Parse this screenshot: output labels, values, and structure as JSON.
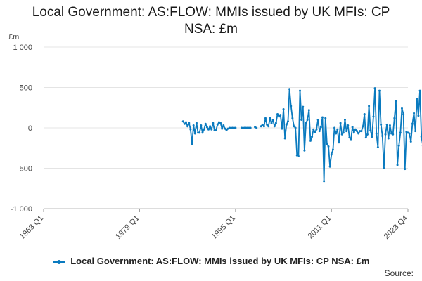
{
  "chart_data": {
    "type": "line",
    "title_line1": "Local Government: AS:FLOW: MMIs issued by UK MFIs: CP",
    "title_line2": "NSA: £m",
    "ylabel": "£m",
    "ylim": [
      -1000,
      1000
    ],
    "yticks": [
      {
        "value": 1000,
        "label": "1 000"
      },
      {
        "value": 500,
        "label": "500"
      },
      {
        "value": 0,
        "label": "0"
      },
      {
        "value": -500,
        "label": "-500"
      },
      {
        "value": -1000,
        "label": "-1 000"
      }
    ],
    "xlim": [
      1963.0,
      2023.75
    ],
    "xticks": [
      {
        "value": 1963.0,
        "label": "1963 Q1"
      },
      {
        "value": 1979.0,
        "label": "1979 Q1"
      },
      {
        "value": 1995.0,
        "label": "1995 Q1"
      },
      {
        "value": 2011.0,
        "label": "2011 Q1"
      },
      {
        "value": 2023.75,
        "label": "2023 Q4"
      }
    ],
    "grid": true,
    "legend_position": "bottom",
    "series": [
      {
        "name": "Local Government: AS:FLOW: MMIs issued by UK MFIs: CP NSA: £m",
        "color": "#0a7abf",
        "segments": [
          [
            [
              1986.25,
              80
            ],
            [
              1986.5,
              50
            ],
            [
              1986.75,
              70
            ],
            [
              1987.0,
              20
            ],
            [
              1987.25,
              60
            ],
            [
              1987.5,
              -20
            ],
            [
              1987.75,
              -200
            ],
            [
              1988.0,
              30
            ],
            [
              1988.25,
              -70
            ],
            [
              1988.5,
              60
            ],
            [
              1988.75,
              -60
            ],
            [
              1989.0,
              -60
            ],
            [
              1989.25,
              30
            ],
            [
              1989.5,
              -60
            ],
            [
              1989.75,
              -20
            ],
            [
              1990.0,
              50
            ],
            [
              1990.25,
              10
            ],
            [
              1990.5,
              -20
            ],
            [
              1990.75,
              20
            ],
            [
              1991.0,
              -20
            ],
            [
              1991.25,
              60
            ],
            [
              1991.5,
              -30
            ],
            [
              1991.75,
              -30
            ],
            [
              1992.0,
              40
            ],
            [
              1992.25,
              70
            ],
            [
              1992.5,
              60
            ],
            [
              1992.75,
              -10
            ],
            [
              1993.0,
              30
            ],
            [
              1993.25,
              -10
            ],
            [
              1993.5,
              -30
            ],
            [
              1993.75,
              -10
            ],
            [
              1994.0,
              0
            ],
            [
              1994.25,
              0
            ],
            [
              1994.5,
              0
            ],
            [
              1994.75,
              0
            ],
            [
              1995.0,
              0
            ]
          ],
          [
            [
              1996.0,
              0
            ],
            [
              1996.25,
              0
            ],
            [
              1996.5,
              0
            ],
            [
              1996.75,
              0
            ],
            [
              1997.0,
              0
            ],
            [
              1997.25,
              0
            ],
            [
              1997.5,
              0
            ]
          ],
          [
            [
              1998.25,
              10
            ],
            [
              1998.5,
              0
            ]
          ],
          [
            [
              1999.25,
              20
            ],
            [
              1999.5,
              40
            ],
            [
              1999.75,
              20
            ],
            [
              2000.0,
              120
            ],
            [
              2000.25,
              40
            ],
            [
              2000.5,
              20
            ],
            [
              2000.75,
              120
            ],
            [
              2001.0,
              60
            ],
            [
              2001.25,
              100
            ],
            [
              2001.5,
              20
            ],
            [
              2001.75,
              60
            ],
            [
              2002.0,
              170
            ],
            [
              2002.25,
              140
            ],
            [
              2002.5,
              160
            ],
            [
              2002.75,
              -10
            ],
            [
              2003.0,
              230
            ],
            [
              2003.25,
              -130
            ],
            [
              2003.5,
              40
            ],
            [
              2003.75,
              80
            ],
            [
              2004.0,
              480
            ],
            [
              2004.25,
              270
            ],
            [
              2004.5,
              120
            ],
            [
              2004.75,
              20
            ],
            [
              2005.0,
              0
            ],
            [
              2005.25,
              -340
            ],
            [
              2005.5,
              -350
            ],
            [
              2005.75,
              460
            ],
            [
              2006.0,
              100
            ],
            [
              2006.25,
              260
            ],
            [
              2006.5,
              -280
            ],
            [
              2006.75,
              60
            ],
            [
              2007.0,
              100
            ],
            [
              2007.25,
              220
            ],
            [
              2007.5,
              -160
            ],
            [
              2007.75,
              -110
            ],
            [
              2008.0,
              -20
            ],
            [
              2008.25,
              -50
            ],
            [
              2008.5,
              -20
            ],
            [
              2008.75,
              100
            ],
            [
              2009.0,
              -40
            ],
            [
              2009.25,
              10
            ],
            [
              2009.5,
              130
            ],
            [
              2009.75,
              -660
            ],
            [
              2010.0,
              120
            ],
            [
              2010.25,
              -200
            ],
            [
              2010.5,
              -230
            ],
            [
              2010.75,
              -480
            ],
            [
              2011.0,
              -330
            ],
            [
              2011.25,
              -270
            ],
            [
              2011.5,
              0
            ],
            [
              2011.75,
              -70
            ],
            [
              2012.0,
              -20
            ],
            [
              2012.25,
              -180
            ],
            [
              2012.5,
              60
            ],
            [
              2012.75,
              -80
            ],
            [
              2013.0,
              -60
            ],
            [
              2013.25,
              100
            ],
            [
              2013.5,
              -40
            ],
            [
              2013.75,
              30
            ],
            [
              2014.0,
              -120
            ],
            [
              2014.25,
              -140
            ],
            [
              2014.5,
              10
            ],
            [
              2014.75,
              -60
            ],
            [
              2015.0,
              -20
            ],
            [
              2015.25,
              -40
            ],
            [
              2015.5,
              -70
            ],
            [
              2015.75,
              -40
            ],
            [
              2016.0,
              -40
            ],
            [
              2016.25,
              20
            ],
            [
              2016.5,
              170
            ],
            [
              2016.75,
              -120
            ],
            [
              2017.0,
              -80
            ],
            [
              2017.25,
              270
            ],
            [
              2017.5,
              -30
            ],
            [
              2017.75,
              -110
            ],
            [
              2018.0,
              140
            ],
            [
              2018.25,
              490
            ],
            [
              2018.5,
              -70
            ],
            [
              2018.75,
              -240
            ],
            [
              2019.0,
              460
            ],
            [
              2019.25,
              40
            ],
            [
              2019.5,
              -100
            ],
            [
              2019.75,
              -500
            ],
            [
              2020.0,
              -80
            ],
            [
              2020.25,
              40
            ],
            [
              2020.5,
              -130
            ],
            [
              2020.75,
              30
            ],
            [
              2021.0,
              -70
            ],
            [
              2021.25,
              -80
            ],
            [
              2021.5,
              120
            ],
            [
              2021.75,
              330
            ],
            [
              2022.0,
              -460
            ],
            [
              2022.25,
              -220
            ],
            [
              2022.5,
              -60
            ],
            [
              2022.75,
              240
            ],
            [
              2023.0,
              170
            ],
            [
              2023.25,
              -510
            ],
            [
              2023.5,
              -50
            ],
            [
              2023.75,
              -60
            ]
          ],
          [
            [
              2024.0,
              -70
            ],
            [
              2024.25,
              -170
            ],
            [
              2024.5,
              50
            ],
            [
              2024.75,
              180
            ],
            [
              2025.0,
              -40
            ],
            [
              2025.25,
              360
            ],
            [
              2025.5,
              150
            ],
            [
              2025.75,
              460
            ],
            [
              2026.0,
              -110
            ],
            [
              2026.25,
              -220
            ],
            [
              2026.5,
              -10
            ],
            [
              2026.75,
              70
            ],
            [
              2027.0,
              -170
            ]
          ]
        ]
      }
    ]
  },
  "legend": {
    "label": "Local Government: AS:FLOW: MMIs issued by UK MFIs: CP NSA: £m"
  },
  "source": {
    "label": "Source:"
  }
}
